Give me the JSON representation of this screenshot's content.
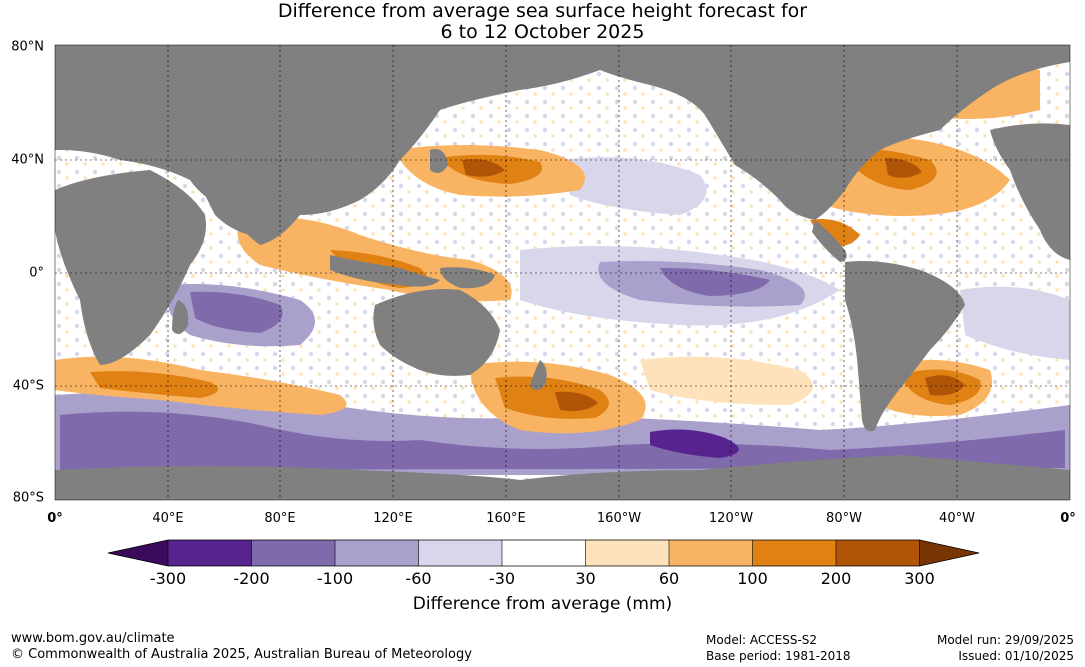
{
  "title": {
    "line1": "Difference from average sea surface height forecast for",
    "line2": "6 to 12 October 2025"
  },
  "map": {
    "lat_labels": [
      "80°N",
      "40°N",
      "0°",
      "40°S",
      "80°S"
    ],
    "lon_labels": [
      "0°",
      "40°E",
      "80°E",
      "120°E",
      "160°E",
      "160°W",
      "120°W",
      "80°W",
      "40°W",
      "0°"
    ],
    "land_color": "#808080"
  },
  "colorbar": {
    "title": "Difference from average (mm)",
    "tick_labels": [
      "-300",
      "-200",
      "-100",
      "-60",
      "-30",
      "30",
      "60",
      "100",
      "200",
      "300"
    ],
    "colors": [
      "#3a0b5c",
      "#56238f",
      "#7f6aab",
      "#aaa0cc",
      "#d8d6ea",
      "#ffffff",
      "#fde2bb",
      "#f8b462",
      "#e08114",
      "#b05408",
      "#7a3505"
    ]
  },
  "footer": {
    "website": "www.bom.gov.au/climate",
    "copyright": "© Commonwealth of Australia 2025, Australian Bureau of Meteorology",
    "model": "Model: ACCESS-S2",
    "base_period": "Base period: 1981-2018",
    "model_run": "Model run: 29/09/2025",
    "issued": "Issued: 01/10/2025"
  }
}
